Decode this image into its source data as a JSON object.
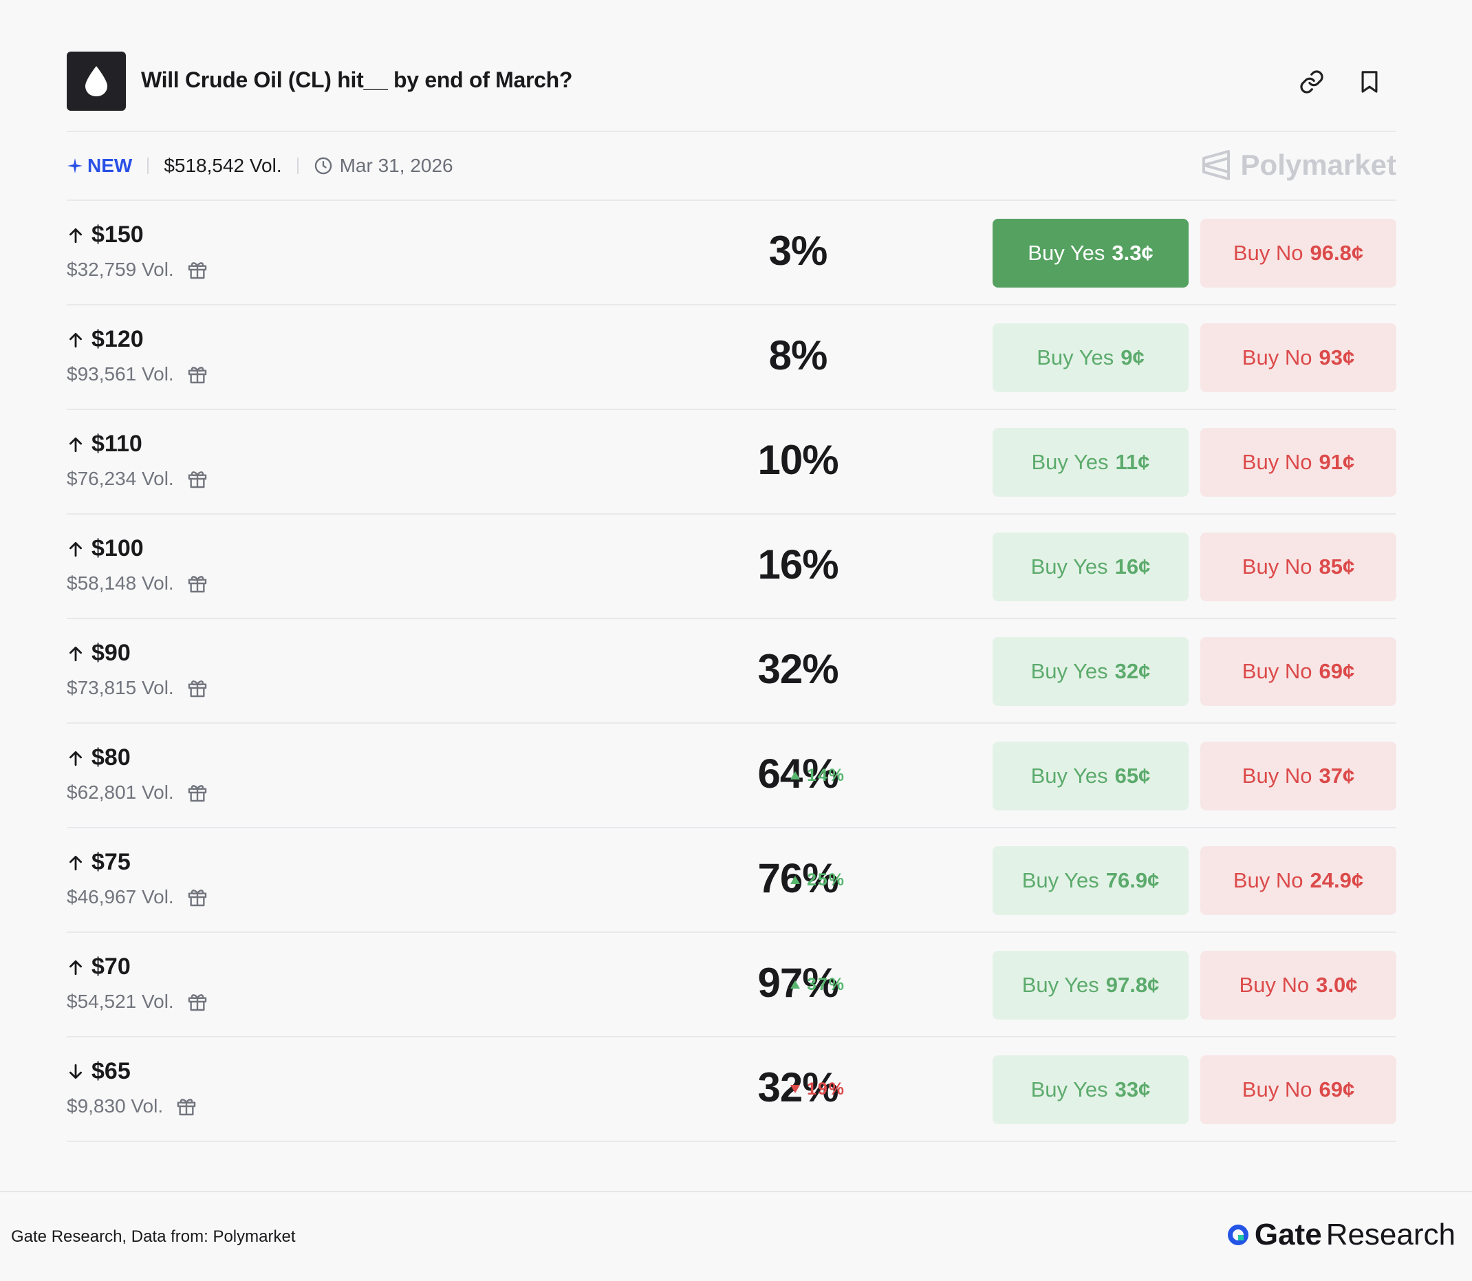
{
  "header": {
    "title": "Will Crude Oil (CL) hit__ by end of March?",
    "logo_icon": "droplet-icon",
    "link_icon": "link-icon",
    "bookmark_icon": "bookmark-icon"
  },
  "meta": {
    "new_label": "NEW",
    "volume": "$518,542 Vol.",
    "date": "Mar 31, 2026",
    "brand": "Polymarket"
  },
  "rows": [
    {
      "direction": "up",
      "threshold": "$150",
      "volume": "$32,759 Vol.",
      "percent": "3%",
      "change": "",
      "change_dir": "",
      "yes_label": "Buy Yes",
      "yes_price": "3.3¢",
      "no_label": "Buy No",
      "no_price": "96.8¢",
      "yes_active": true
    },
    {
      "direction": "up",
      "threshold": "$120",
      "volume": "$93,561 Vol.",
      "percent": "8%",
      "change": "",
      "change_dir": "",
      "yes_label": "Buy Yes",
      "yes_price": "9¢",
      "no_label": "Buy No",
      "no_price": "93¢",
      "yes_active": false
    },
    {
      "direction": "up",
      "threshold": "$110",
      "volume": "$76,234 Vol.",
      "percent": "10%",
      "change": "",
      "change_dir": "",
      "yes_label": "Buy Yes",
      "yes_price": "11¢",
      "no_label": "Buy No",
      "no_price": "91¢",
      "yes_active": false
    },
    {
      "direction": "up",
      "threshold": "$100",
      "volume": "$58,148 Vol.",
      "percent": "16%",
      "change": "",
      "change_dir": "",
      "yes_label": "Buy Yes",
      "yes_price": "16¢",
      "no_label": "Buy No",
      "no_price": "85¢",
      "yes_active": false
    },
    {
      "direction": "up",
      "threshold": "$90",
      "volume": "$73,815 Vol.",
      "percent": "32%",
      "change": "",
      "change_dir": "",
      "yes_label": "Buy Yes",
      "yes_price": "32¢",
      "no_label": "Buy No",
      "no_price": "69¢",
      "yes_active": false
    },
    {
      "direction": "up",
      "threshold": "$80",
      "volume": "$62,801 Vol.",
      "percent": "64%",
      "change": "14%",
      "change_dir": "up",
      "yes_label": "Buy Yes",
      "yes_price": "65¢",
      "no_label": "Buy No",
      "no_price": "37¢",
      "yes_active": false
    },
    {
      "direction": "up",
      "threshold": "$75",
      "volume": "$46,967 Vol.",
      "percent": "76%",
      "change": "25%",
      "change_dir": "up",
      "yes_label": "Buy Yes",
      "yes_price": "76.9¢",
      "no_label": "Buy No",
      "no_price": "24.9¢",
      "yes_active": false
    },
    {
      "direction": "up",
      "threshold": "$70",
      "volume": "$54,521 Vol.",
      "percent": "97%",
      "change": "37%",
      "change_dir": "up",
      "yes_label": "Buy Yes",
      "yes_price": "97.8¢",
      "no_label": "Buy No",
      "no_price": "3.0¢",
      "yes_active": false
    },
    {
      "direction": "down",
      "threshold": "$65",
      "volume": "$9,830 Vol.",
      "percent": "32%",
      "change": "19%",
      "change_dir": "down",
      "yes_label": "Buy Yes",
      "yes_price": "33¢",
      "no_label": "Buy No",
      "no_price": "69¢",
      "yes_active": false
    }
  ],
  "footer": {
    "source": "Gate Research, Data from: Polymarket",
    "brand_bold": "Gate",
    "brand_light": "Research"
  },
  "colors": {
    "yes_active_bg": "#54a160",
    "yes_bg": "#e3f2e6",
    "yes_text": "#5cab6d",
    "no_bg": "#f8e6e6",
    "no_text": "#dc4a4a",
    "new_blue": "#2950e6",
    "change_up": "#58b76f",
    "change_down": "#dd4a4a"
  }
}
